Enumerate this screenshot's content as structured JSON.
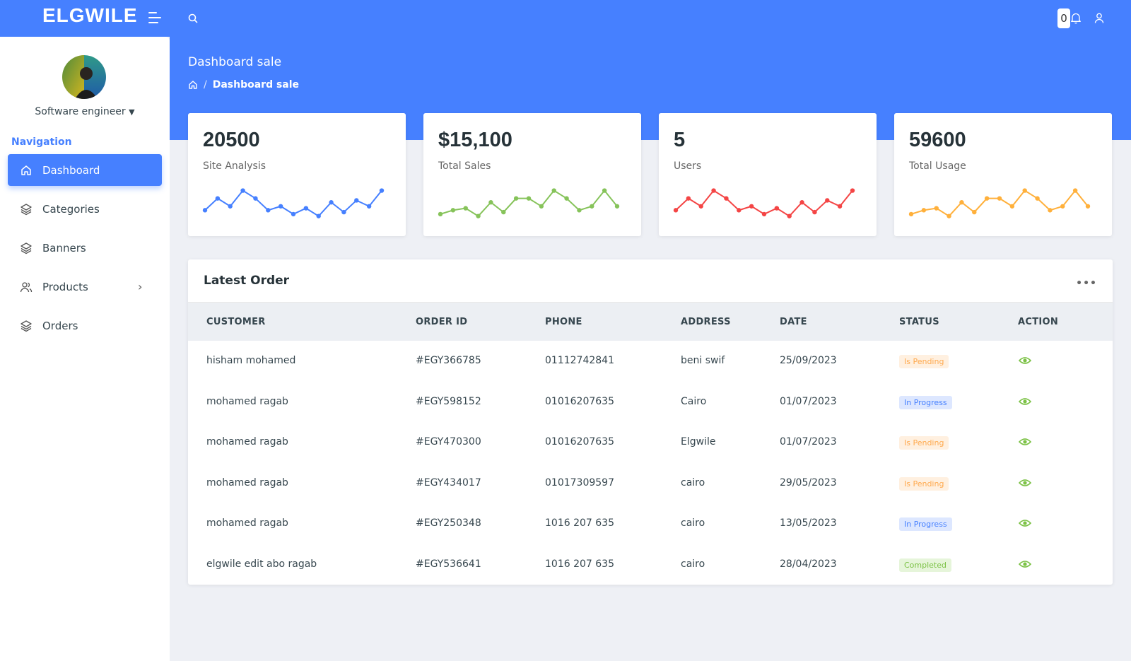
{
  "brand": "ELGWILE",
  "notifications": {
    "count": "0"
  },
  "header": {
    "title": "Dashboard sale",
    "breadcrumb": {
      "sep": "/",
      "current": "Dashboard sale"
    }
  },
  "sidebar": {
    "user_role": "Software engineer",
    "nav_caption": "Navigation",
    "items": [
      {
        "label": "Dashboard",
        "icon": "home-icon",
        "active": true
      },
      {
        "label": "Categories",
        "icon": "layers-icon"
      },
      {
        "label": "Banners",
        "icon": "layers-icon"
      },
      {
        "label": "Products",
        "icon": "users-icon",
        "has_children": true
      },
      {
        "label": "Orders",
        "icon": "layers-icon"
      }
    ]
  },
  "stats": [
    {
      "value": "20500",
      "label": "Site Analysis",
      "color": "#4680ff",
      "trend": [
        3,
        6,
        4,
        8,
        6,
        3,
        4,
        2,
        3.5,
        1.5,
        5,
        2.5,
        5.5,
        4,
        8
      ]
    },
    {
      "value": "$15,100",
      "label": "Total Sales",
      "color": "#86c35a",
      "trend": [
        2,
        3,
        3.5,
        1.5,
        5,
        2.5,
        6,
        6,
        4,
        8,
        6,
        3,
        4,
        8,
        4
      ]
    },
    {
      "value": "5",
      "label": "Users",
      "color": "#f44545",
      "trend": [
        3,
        6,
        4,
        8,
        6,
        3,
        4,
        2,
        3.5,
        1.5,
        5,
        2.5,
        5.5,
        4,
        8
      ]
    },
    {
      "value": "59600",
      "label": "Total Usage",
      "color": "#ffb03b",
      "trend": [
        2,
        3,
        3.5,
        1.5,
        5,
        2.5,
        6,
        6,
        4,
        8,
        6,
        3,
        4,
        8,
        4
      ]
    }
  ],
  "orders": {
    "title": "Latest Order",
    "more": "•••",
    "columns": [
      "CUSTOMER",
      "ORDER ID",
      "PHONE",
      "ADDRESS",
      "DATE",
      "STATUS",
      "ACTION"
    ],
    "rows": [
      {
        "customer": "hisham mohamed",
        "order_id": "#EGY366785",
        "phone": "01112742841",
        "address": "beni swif",
        "date": "25/09/2023",
        "status": "Is Pending",
        "status_type": "pending"
      },
      {
        "customer": "mohamed ragab",
        "order_id": "#EGY598152",
        "phone": "01016207635",
        "address": "Cairo",
        "date": "01/07/2023",
        "status": "In Progress",
        "status_type": "progress"
      },
      {
        "customer": "mohamed ragab",
        "order_id": "#EGY470300",
        "phone": "01016207635",
        "address": "Elgwile",
        "date": "01/07/2023",
        "status": "Is Pending",
        "status_type": "pending"
      },
      {
        "customer": "mohamed ragab",
        "order_id": "#EGY434017",
        "phone": "01017309597",
        "address": "cairo",
        "date": "29/05/2023",
        "status": "Is Pending",
        "status_type": "pending"
      },
      {
        "customer": "mohamed ragab",
        "order_id": "#EGY250348",
        "phone": "1016 207 635",
        "address": "cairo",
        "date": "13/05/2023",
        "status": "In Progress",
        "status_type": "progress"
      },
      {
        "customer": "elgwile edit abo ragab",
        "order_id": "#EGY536641",
        "phone": "1016 207 635",
        "address": "cairo",
        "date": "28/04/2023",
        "status": "Completed",
        "status_type": "completed"
      }
    ]
  }
}
